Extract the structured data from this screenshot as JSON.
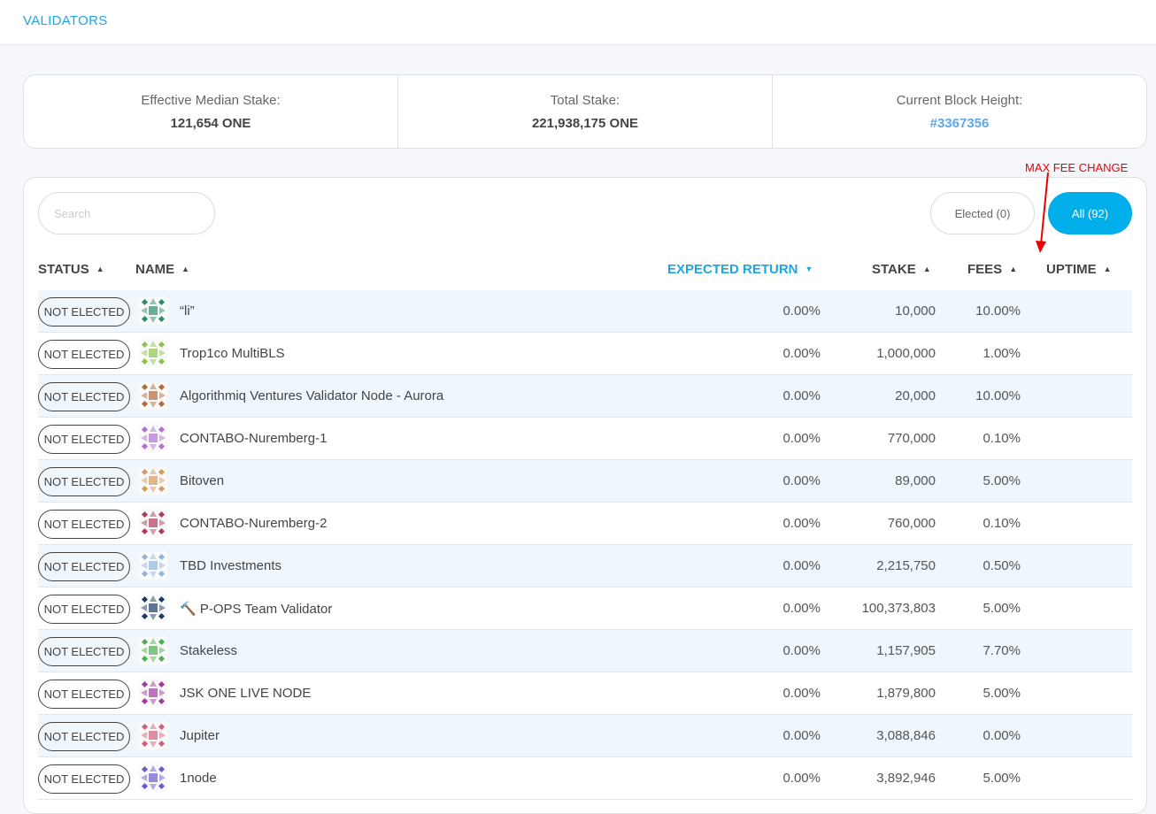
{
  "header": {
    "title": "VALIDATORS"
  },
  "stats": [
    {
      "label": "Effective Median Stake:",
      "value": "121,654 ONE"
    },
    {
      "label": "Total Stake:",
      "value": "221,938,175 ONE"
    },
    {
      "label": "Current Block Height:",
      "value": "#3367356"
    }
  ],
  "search": {
    "placeholder": "Search"
  },
  "filters": {
    "elected": "Elected (0)",
    "all": "All (92)"
  },
  "annotation": {
    "text": "MAX FEE CHANGE",
    "color": "#e00000"
  },
  "columns": {
    "status": "STATUS",
    "name": "NAME",
    "expected_return": "EXPECTED RETURN",
    "stake": "STAKE",
    "fees": "FEES",
    "uptime": "UPTIME"
  },
  "accent": "#00aee9",
  "rows": [
    {
      "status": "NOT ELECTED",
      "name": "“li”",
      "expected_return": "0.00%",
      "stake": "10,000",
      "fees": "10.00%",
      "avatar_color": "#2e8b6a"
    },
    {
      "status": "NOT ELECTED",
      "name": "Trop1co MultiBLS",
      "expected_return": "0.00%",
      "stake": "1,000,000",
      "fees": "1.00%",
      "avatar_color": "#8bc34a"
    },
    {
      "status": "NOT ELECTED",
      "name": "Algorithmiq Ventures Validator Node - Aurora",
      "expected_return": "0.00%",
      "stake": "20,000",
      "fees": "10.00%",
      "avatar_color": "#b06a3c"
    },
    {
      "status": "NOT ELECTED",
      "name": "CONTABO-Nuremberg-1",
      "expected_return": "0.00%",
      "stake": "770,000",
      "fees": "0.10%",
      "avatar_color": "#b46fd0"
    },
    {
      "status": "NOT ELECTED",
      "name": "Bitoven",
      "expected_return": "0.00%",
      "stake": "89,000",
      "fees": "5.00%",
      "avatar_color": "#d39a5e"
    },
    {
      "status": "NOT ELECTED",
      "name": "CONTABO-Nuremberg-2",
      "expected_return": "0.00%",
      "stake": "760,000",
      "fees": "0.10%",
      "avatar_color": "#b03a5a"
    },
    {
      "status": "NOT ELECTED",
      "name": "TBD Investments",
      "expected_return": "0.00%",
      "stake": "2,215,750",
      "fees": "0.50%",
      "avatar_color": "#8fb3e0"
    },
    {
      "status": "NOT ELECTED",
      "name": "🔨 P-OPS Team Validator",
      "expected_return": "0.00%",
      "stake": "100,373,803",
      "fees": "5.00%",
      "avatar_color": "#1a3a6a"
    },
    {
      "status": "NOT ELECTED",
      "name": "Stakeless",
      "expected_return": "0.00%",
      "stake": "1,157,905",
      "fees": "7.70%",
      "avatar_color": "#4caf50"
    },
    {
      "status": "NOT ELECTED",
      "name": "JSK ONE LIVE NODE",
      "expected_return": "0.00%",
      "stake": "1,879,800",
      "fees": "5.00%",
      "avatar_color": "#a03aa0"
    },
    {
      "status": "NOT ELECTED",
      "name": "Jupiter",
      "expected_return": "0.00%",
      "stake": "3,088,846",
      "fees": "0.00%",
      "avatar_color": "#d0607a"
    },
    {
      "status": "NOT ELECTED",
      "name": "1node",
      "expected_return": "0.00%",
      "stake": "3,892,946",
      "fees": "5.00%",
      "avatar_color": "#6a5acd"
    }
  ]
}
